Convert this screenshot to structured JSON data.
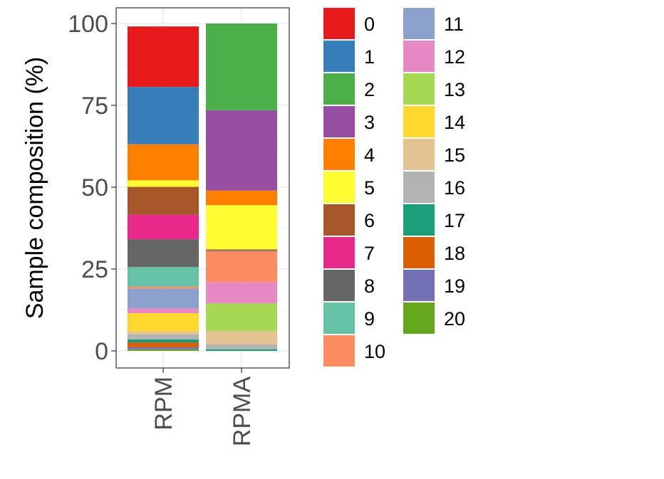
{
  "chart_data": {
    "type": "bar",
    "stacked": true,
    "ylabel": "Sample composition (%)",
    "xlabel": "",
    "ylim": [
      0,
      100
    ],
    "yticks": [
      0,
      25,
      50,
      75,
      100
    ],
    "grid": true,
    "legend_position": "right",
    "categories": [
      "RPM",
      "RPMA"
    ],
    "series": [
      {
        "name": "0",
        "color": "#E41A1C",
        "values": [
          18.5,
          0.0
        ]
      },
      {
        "name": "1",
        "color": "#377EB8",
        "values": [
          17.5,
          0.0
        ]
      },
      {
        "name": "2",
        "color": "#4DAF4A",
        "values": [
          0.0,
          26.5
        ]
      },
      {
        "name": "3",
        "color": "#984EA3",
        "values": [
          0.0,
          24.5
        ]
      },
      {
        "name": "4",
        "color": "#FF7F00",
        "values": [
          11.0,
          4.5
        ]
      },
      {
        "name": "5",
        "color": "#FFFF33",
        "values": [
          2.0,
          13.5
        ]
      },
      {
        "name": "6",
        "color": "#A65628",
        "values": [
          8.5,
          0.3
        ]
      },
      {
        "name": "7",
        "color": "#E7298A",
        "values": [
          7.5,
          0.0
        ]
      },
      {
        "name": "8",
        "color": "#666666",
        "values": [
          8.5,
          0.2
        ]
      },
      {
        "name": "9",
        "color": "#66C2A5",
        "values": [
          6.0,
          0.0
        ]
      },
      {
        "name": "10",
        "color": "#FC8D62",
        "values": [
          0.6,
          9.5
        ]
      },
      {
        "name": "11",
        "color": "#8DA0CB",
        "values": [
          6.0,
          0.0
        ]
      },
      {
        "name": "12",
        "color": "#E78AC3",
        "values": [
          1.5,
          6.5
        ]
      },
      {
        "name": "13",
        "color": "#A6D854",
        "values": [
          0.0,
          8.5
        ]
      },
      {
        "name": "14",
        "color": "#FFD92F",
        "values": [
          5.5,
          0.0
        ]
      },
      {
        "name": "15",
        "color": "#E5C494",
        "values": [
          1.0,
          4.0
        ]
      },
      {
        "name": "16",
        "color": "#B3B3B3",
        "values": [
          1.5,
          1.5
        ]
      },
      {
        "name": "17",
        "color": "#1B9E77",
        "values": [
          0.9,
          0.5
        ]
      },
      {
        "name": "18",
        "color": "#D95F02",
        "values": [
          1.5,
          0.0
        ]
      },
      {
        "name": "19",
        "color": "#7570B3",
        "values": [
          0.6,
          0.0
        ]
      },
      {
        "name": "20",
        "color": "#66A61E",
        "values": [
          0.5,
          0.0
        ]
      }
    ]
  }
}
